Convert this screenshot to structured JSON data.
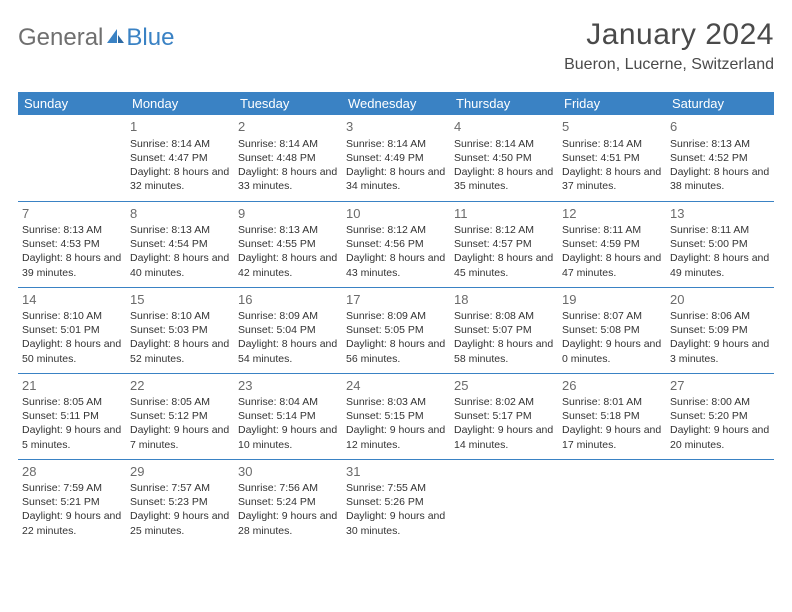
{
  "logo": {
    "general": "General",
    "blue": "Blue"
  },
  "title": "January 2024",
  "location": "Bueron, Lucerne, Switzerland",
  "colors": {
    "header_bg": "#3a82c4",
    "header_text": "#ffffff",
    "border": "#3a82c4",
    "text": "#333333",
    "daynum": "#6b6b6b",
    "logo_gray": "#6f6f6f",
    "logo_blue": "#3a82c4",
    "background": "#ffffff"
  },
  "typography": {
    "title_fontsize": 30,
    "location_fontsize": 16,
    "dayheader_fontsize": 13,
    "daynum_fontsize": 13,
    "body_fontsize": 10.5
  },
  "day_headers": [
    "Sunday",
    "Monday",
    "Tuesday",
    "Wednesday",
    "Thursday",
    "Friday",
    "Saturday"
  ],
  "weeks": [
    [
      null,
      {
        "n": "1",
        "sr": "Sunrise: 8:14 AM",
        "ss": "Sunset: 4:47 PM",
        "dl": "Daylight: 8 hours and 32 minutes."
      },
      {
        "n": "2",
        "sr": "Sunrise: 8:14 AM",
        "ss": "Sunset: 4:48 PM",
        "dl": "Daylight: 8 hours and 33 minutes."
      },
      {
        "n": "3",
        "sr": "Sunrise: 8:14 AM",
        "ss": "Sunset: 4:49 PM",
        "dl": "Daylight: 8 hours and 34 minutes."
      },
      {
        "n": "4",
        "sr": "Sunrise: 8:14 AM",
        "ss": "Sunset: 4:50 PM",
        "dl": "Daylight: 8 hours and 35 minutes."
      },
      {
        "n": "5",
        "sr": "Sunrise: 8:14 AM",
        "ss": "Sunset: 4:51 PM",
        "dl": "Daylight: 8 hours and 37 minutes."
      },
      {
        "n": "6",
        "sr": "Sunrise: 8:13 AM",
        "ss": "Sunset: 4:52 PM",
        "dl": "Daylight: 8 hours and 38 minutes."
      }
    ],
    [
      {
        "n": "7",
        "sr": "Sunrise: 8:13 AM",
        "ss": "Sunset: 4:53 PM",
        "dl": "Daylight: 8 hours and 39 minutes."
      },
      {
        "n": "8",
        "sr": "Sunrise: 8:13 AM",
        "ss": "Sunset: 4:54 PM",
        "dl": "Daylight: 8 hours and 40 minutes."
      },
      {
        "n": "9",
        "sr": "Sunrise: 8:13 AM",
        "ss": "Sunset: 4:55 PM",
        "dl": "Daylight: 8 hours and 42 minutes."
      },
      {
        "n": "10",
        "sr": "Sunrise: 8:12 AM",
        "ss": "Sunset: 4:56 PM",
        "dl": "Daylight: 8 hours and 43 minutes."
      },
      {
        "n": "11",
        "sr": "Sunrise: 8:12 AM",
        "ss": "Sunset: 4:57 PM",
        "dl": "Daylight: 8 hours and 45 minutes."
      },
      {
        "n": "12",
        "sr": "Sunrise: 8:11 AM",
        "ss": "Sunset: 4:59 PM",
        "dl": "Daylight: 8 hours and 47 minutes."
      },
      {
        "n": "13",
        "sr": "Sunrise: 8:11 AM",
        "ss": "Sunset: 5:00 PM",
        "dl": "Daylight: 8 hours and 49 minutes."
      }
    ],
    [
      {
        "n": "14",
        "sr": "Sunrise: 8:10 AM",
        "ss": "Sunset: 5:01 PM",
        "dl": "Daylight: 8 hours and 50 minutes."
      },
      {
        "n": "15",
        "sr": "Sunrise: 8:10 AM",
        "ss": "Sunset: 5:03 PM",
        "dl": "Daylight: 8 hours and 52 minutes."
      },
      {
        "n": "16",
        "sr": "Sunrise: 8:09 AM",
        "ss": "Sunset: 5:04 PM",
        "dl": "Daylight: 8 hours and 54 minutes."
      },
      {
        "n": "17",
        "sr": "Sunrise: 8:09 AM",
        "ss": "Sunset: 5:05 PM",
        "dl": "Daylight: 8 hours and 56 minutes."
      },
      {
        "n": "18",
        "sr": "Sunrise: 8:08 AM",
        "ss": "Sunset: 5:07 PM",
        "dl": "Daylight: 8 hours and 58 minutes."
      },
      {
        "n": "19",
        "sr": "Sunrise: 8:07 AM",
        "ss": "Sunset: 5:08 PM",
        "dl": "Daylight: 9 hours and 0 minutes."
      },
      {
        "n": "20",
        "sr": "Sunrise: 8:06 AM",
        "ss": "Sunset: 5:09 PM",
        "dl": "Daylight: 9 hours and 3 minutes."
      }
    ],
    [
      {
        "n": "21",
        "sr": "Sunrise: 8:05 AM",
        "ss": "Sunset: 5:11 PM",
        "dl": "Daylight: 9 hours and 5 minutes."
      },
      {
        "n": "22",
        "sr": "Sunrise: 8:05 AM",
        "ss": "Sunset: 5:12 PM",
        "dl": "Daylight: 9 hours and 7 minutes."
      },
      {
        "n": "23",
        "sr": "Sunrise: 8:04 AM",
        "ss": "Sunset: 5:14 PM",
        "dl": "Daylight: 9 hours and 10 minutes."
      },
      {
        "n": "24",
        "sr": "Sunrise: 8:03 AM",
        "ss": "Sunset: 5:15 PM",
        "dl": "Daylight: 9 hours and 12 minutes."
      },
      {
        "n": "25",
        "sr": "Sunrise: 8:02 AM",
        "ss": "Sunset: 5:17 PM",
        "dl": "Daylight: 9 hours and 14 minutes."
      },
      {
        "n": "26",
        "sr": "Sunrise: 8:01 AM",
        "ss": "Sunset: 5:18 PM",
        "dl": "Daylight: 9 hours and 17 minutes."
      },
      {
        "n": "27",
        "sr": "Sunrise: 8:00 AM",
        "ss": "Sunset: 5:20 PM",
        "dl": "Daylight: 9 hours and 20 minutes."
      }
    ],
    [
      {
        "n": "28",
        "sr": "Sunrise: 7:59 AM",
        "ss": "Sunset: 5:21 PM",
        "dl": "Daylight: 9 hours and 22 minutes."
      },
      {
        "n": "29",
        "sr": "Sunrise: 7:57 AM",
        "ss": "Sunset: 5:23 PM",
        "dl": "Daylight: 9 hours and 25 minutes."
      },
      {
        "n": "30",
        "sr": "Sunrise: 7:56 AM",
        "ss": "Sunset: 5:24 PM",
        "dl": "Daylight: 9 hours and 28 minutes."
      },
      {
        "n": "31",
        "sr": "Sunrise: 7:55 AM",
        "ss": "Sunset: 5:26 PM",
        "dl": "Daylight: 9 hours and 30 minutes."
      },
      null,
      null,
      null
    ]
  ]
}
